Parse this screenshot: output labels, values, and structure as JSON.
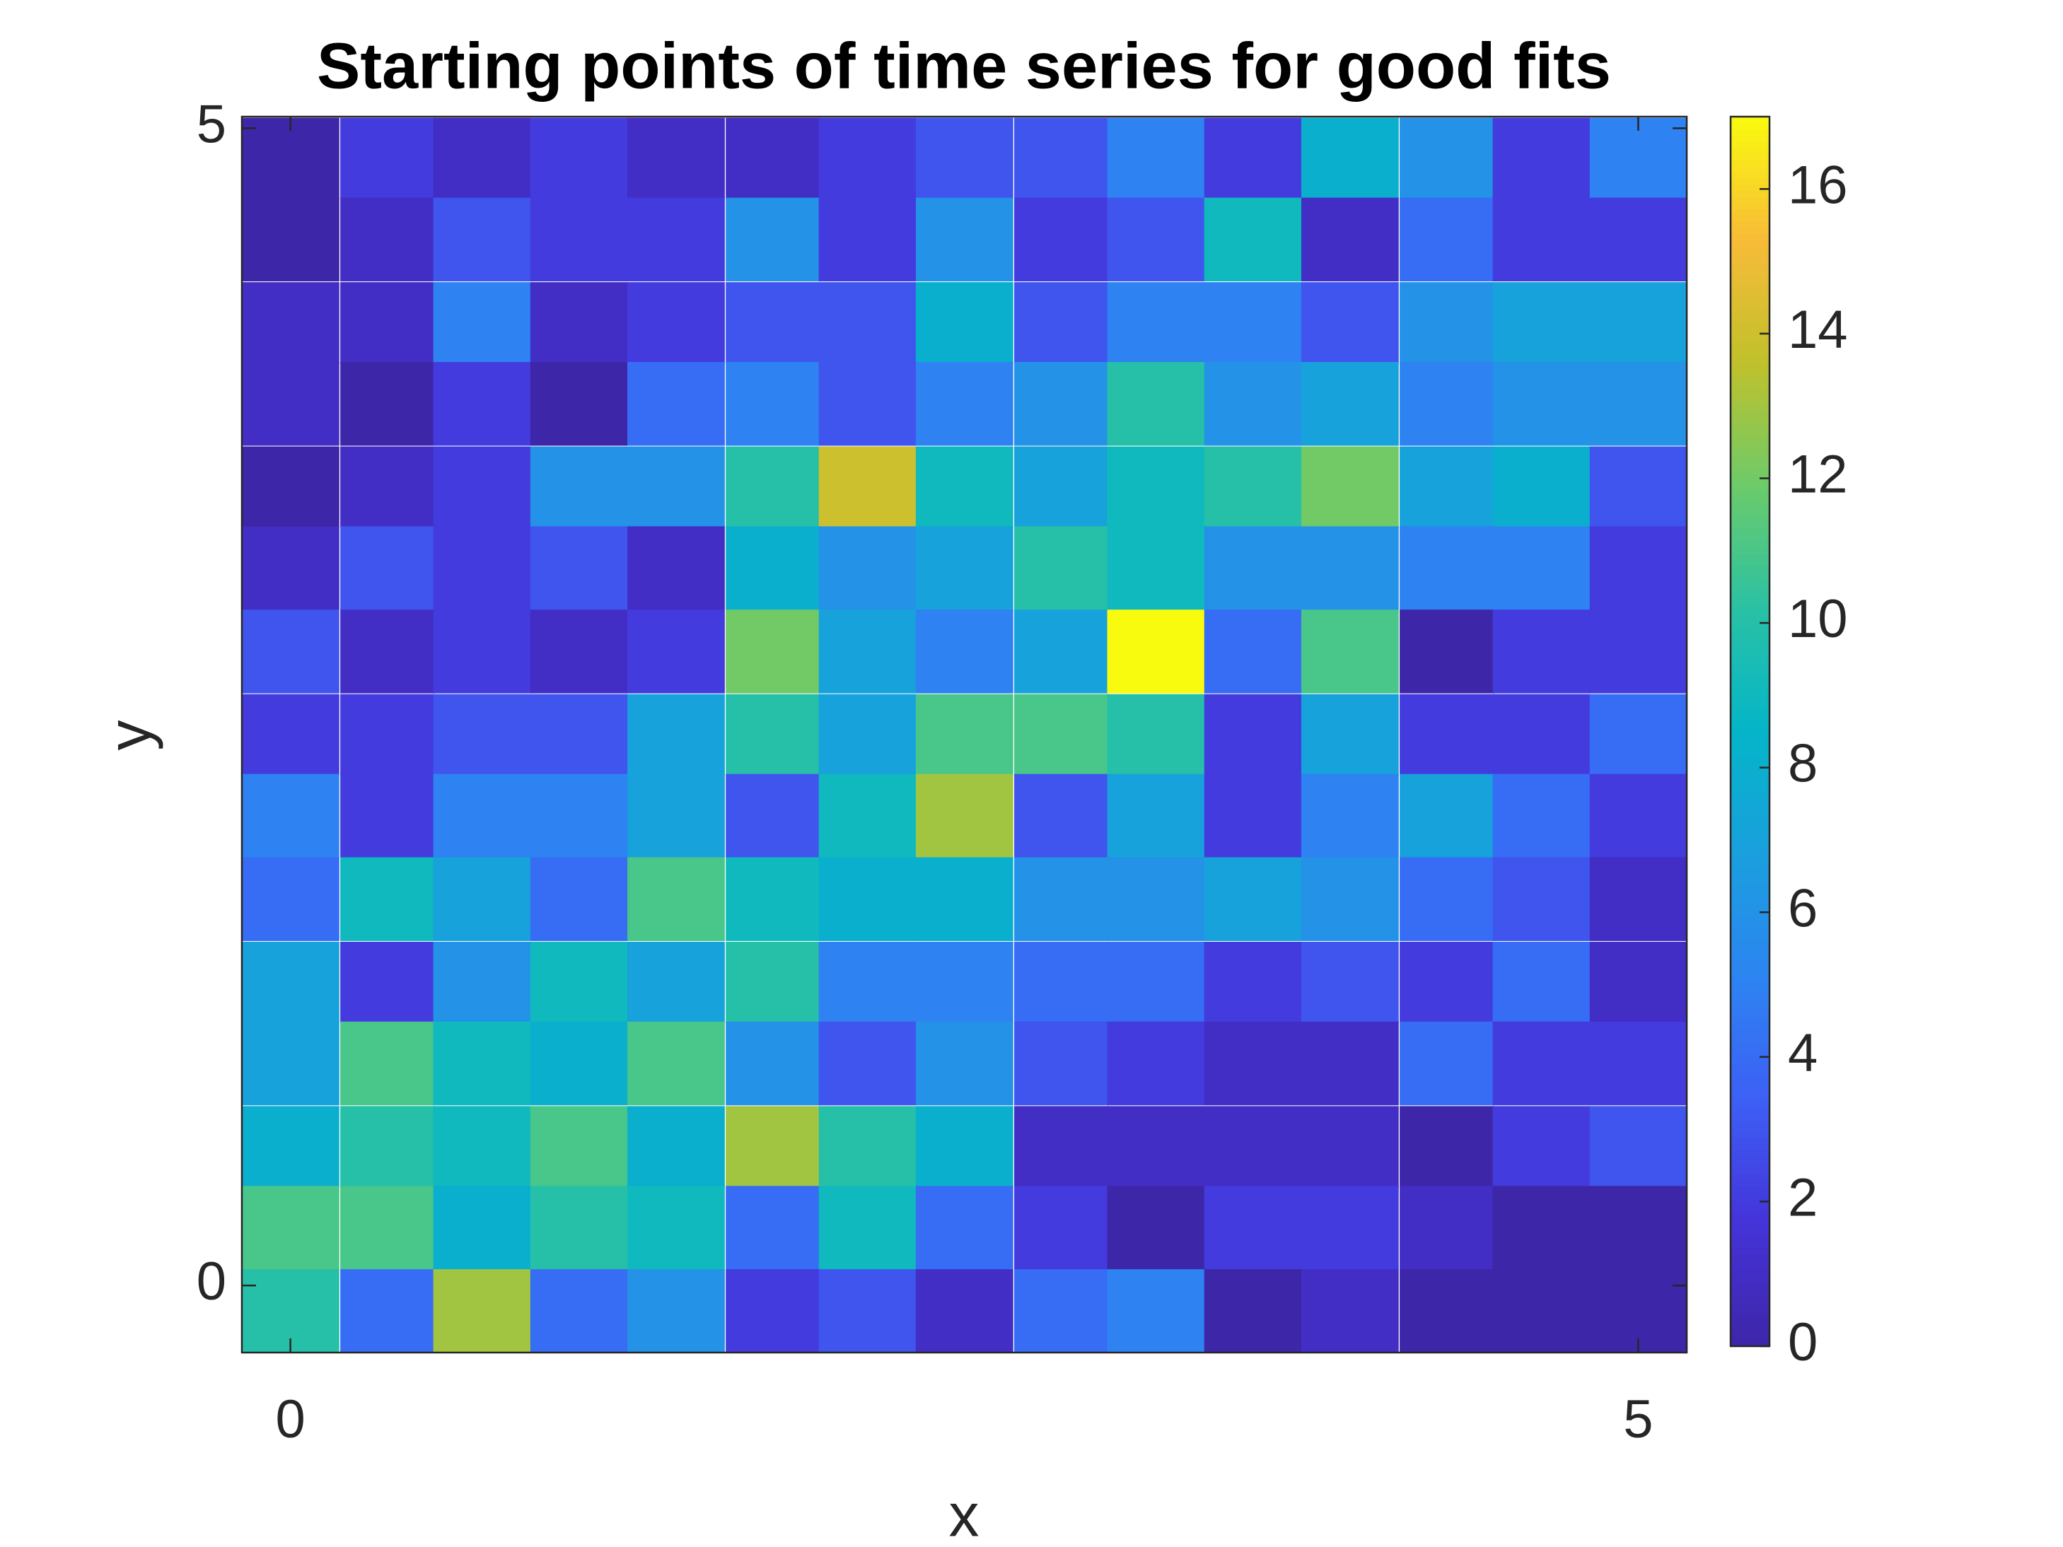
{
  "chart_data": {
    "type": "heatmap",
    "title": "Starting points of time series for good fits",
    "xlabel": "x",
    "ylabel": "y",
    "x": [
      0,
      0.36,
      0.71,
      1.07,
      1.43,
      1.79,
      2.14,
      2.5,
      2.86,
      3.21,
      3.57,
      3.93,
      4.29,
      4.64,
      5
    ],
    "y": [
      4.87,
      4.52,
      4.16,
      3.81,
      3.45,
      3.1,
      2.74,
      2.38,
      2.03,
      1.67,
      1.31,
      0.96,
      0.6,
      0.25,
      -0.11
    ],
    "z": [
      [
        0,
        2,
        1,
        2,
        1,
        1,
        2,
        3,
        3,
        5,
        2,
        8,
        6,
        2,
        5
      ],
      [
        0,
        1,
        3,
        2,
        2,
        6,
        2,
        6,
        2,
        3,
        9,
        1,
        4,
        2,
        2
      ],
      [
        1,
        1,
        5,
        1,
        2,
        3,
        3,
        8,
        3,
        5,
        5,
        3,
        6,
        7,
        7
      ],
      [
        1,
        0,
        2,
        0,
        4,
        5,
        3,
        5,
        6,
        10,
        6,
        7,
        5,
        6,
        6
      ],
      [
        0,
        1,
        2,
        6,
        6,
        10,
        14,
        9,
        7,
        9,
        10,
        12,
        7,
        8,
        3
      ],
      [
        1,
        3,
        2,
        3,
        1,
        8,
        6,
        7,
        10,
        9,
        6,
        6,
        5,
        5,
        2
      ],
      [
        3,
        1,
        2,
        1,
        2,
        12,
        7,
        5,
        7,
        17,
        4,
        11,
        0,
        2,
        2
      ],
      [
        2,
        2,
        3,
        3,
        7,
        10,
        7,
        11,
        11,
        10,
        2,
        7,
        2,
        2,
        4
      ],
      [
        5,
        2,
        5,
        5,
        7,
        3,
        9,
        13,
        3,
        7,
        2,
        5,
        7,
        4,
        2
      ],
      [
        4,
        9,
        7,
        4,
        11,
        9,
        8,
        8,
        6,
        6,
        7,
        6,
        4,
        3,
        1
      ],
      [
        7,
        2,
        6,
        9,
        7,
        10,
        5,
        5,
        4,
        4,
        2,
        3,
        2,
        4,
        1
      ],
      [
        7,
        11,
        9,
        8,
        11,
        6,
        3,
        6,
        3,
        2,
        1,
        1,
        4,
        2,
        2
      ],
      [
        8,
        10,
        9,
        11,
        8,
        13,
        10,
        8,
        1,
        1,
        1,
        1,
        0,
        2,
        3
      ],
      [
        11,
        11,
        8,
        10,
        9,
        4,
        9,
        4,
        2,
        0,
        2,
        2,
        1,
        0,
        0
      ],
      [
        10,
        4,
        13,
        4,
        6,
        2,
        3,
        1,
        4,
        5,
        0,
        1,
        0,
        0,
        0
      ]
    ],
    "xlim": [
      -0.18,
      5.18
    ],
    "ylim": [
      -0.29,
      5.05
    ],
    "xticks": [
      0,
      5
    ],
    "yticks": [
      0,
      5
    ],
    "colormap": "parula",
    "clim": [
      0,
      17
    ],
    "colorbar_ticks": [
      0,
      2,
      4,
      6,
      8,
      10,
      12,
      14,
      16
    ]
  }
}
